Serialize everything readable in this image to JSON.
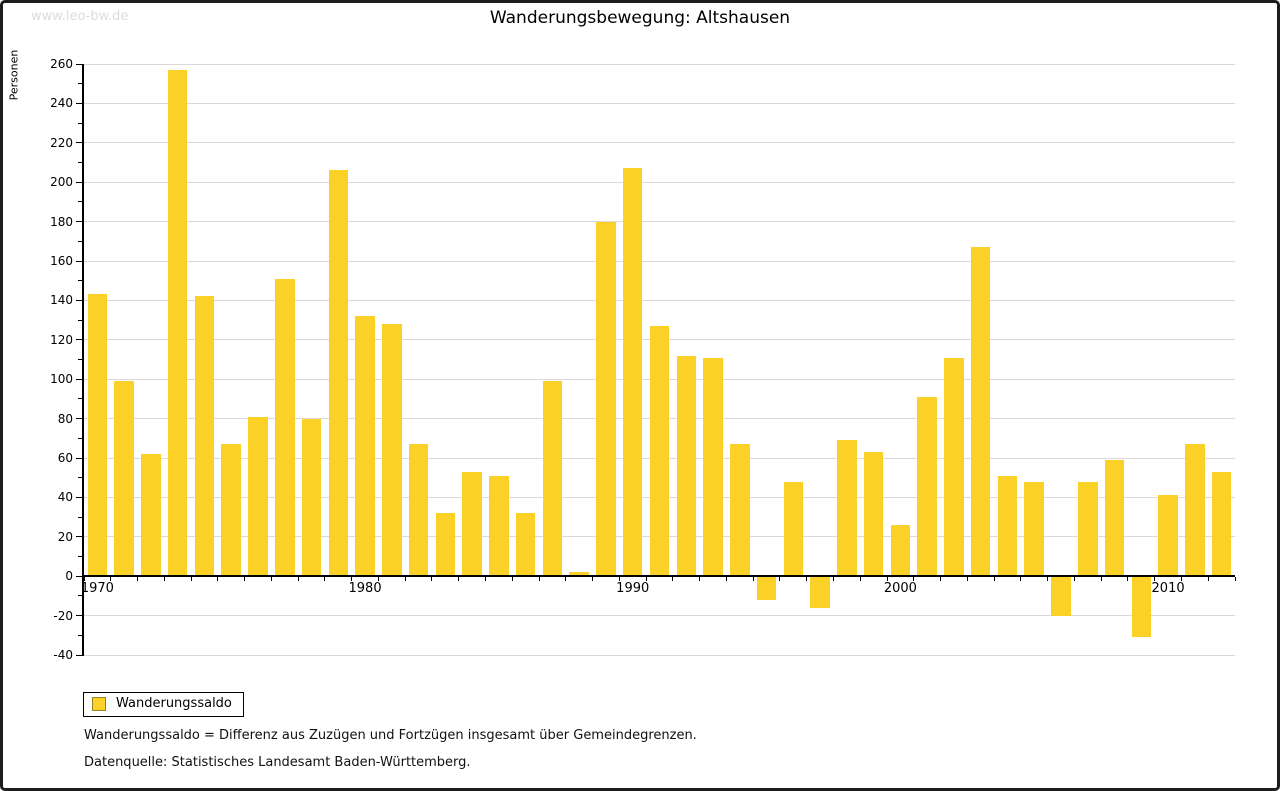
{
  "page": {
    "watermark": "www.leo-bw.de",
    "title": "Wanderungsbewegung: Altshausen"
  },
  "chart_data": {
    "type": "bar",
    "title": "Wanderungsbewegung: Altshausen",
    "xlabel": "",
    "ylabel": "Personen",
    "ylim": [
      -40,
      260
    ],
    "ytick_step": 20,
    "ytick_minor_step": 10,
    "grid": "horizontal",
    "legend_position": "bottom-left",
    "x": [
      1970,
      1971,
      1972,
      1973,
      1974,
      1975,
      1976,
      1977,
      1978,
      1979,
      1980,
      1981,
      1982,
      1983,
      1984,
      1985,
      1986,
      1987,
      1988,
      1989,
      1990,
      1991,
      1992,
      1993,
      1994,
      1995,
      1996,
      1997,
      1998,
      1999,
      2000,
      2001,
      2002,
      2003,
      2004,
      2005,
      2006,
      2007,
      2008,
      2009,
      2010,
      2011,
      2012
    ],
    "x_tick_years": [
      1970,
      1980,
      1990,
      2000,
      2010
    ],
    "x_tick_labels": [
      "1970",
      "1980",
      "1990",
      "2000",
      "2010"
    ],
    "series": [
      {
        "name": "Wanderungssaldo",
        "color": "#fbd128",
        "values": [
          143,
          99,
          62,
          257,
          142,
          67,
          81,
          151,
          80,
          206,
          132,
          128,
          67,
          32,
          53,
          51,
          32,
          99,
          2,
          180,
          207,
          127,
          112,
          111,
          67,
          -12,
          48,
          -16,
          69,
          63,
          26,
          91,
          111,
          167,
          51,
          48,
          -20,
          48,
          59,
          -31,
          41,
          67,
          53
        ]
      }
    ]
  },
  "legend": {
    "items": [
      {
        "label": "Wanderungssaldo",
        "swatch_color": "#fbd128"
      }
    ]
  },
  "footer": {
    "line1": "Wanderungssaldo = Differenz aus Zuzügen und Fortzügen insgesamt über Gemeindegrenzen.",
    "line2": "Datenquelle: Statistisches Landesamt Baden-Württemberg."
  },
  "colors": {
    "bar": "#fbd128",
    "gridline": "#d9d9d9",
    "axis": "#000000",
    "watermark": "#dcdcdc"
  }
}
